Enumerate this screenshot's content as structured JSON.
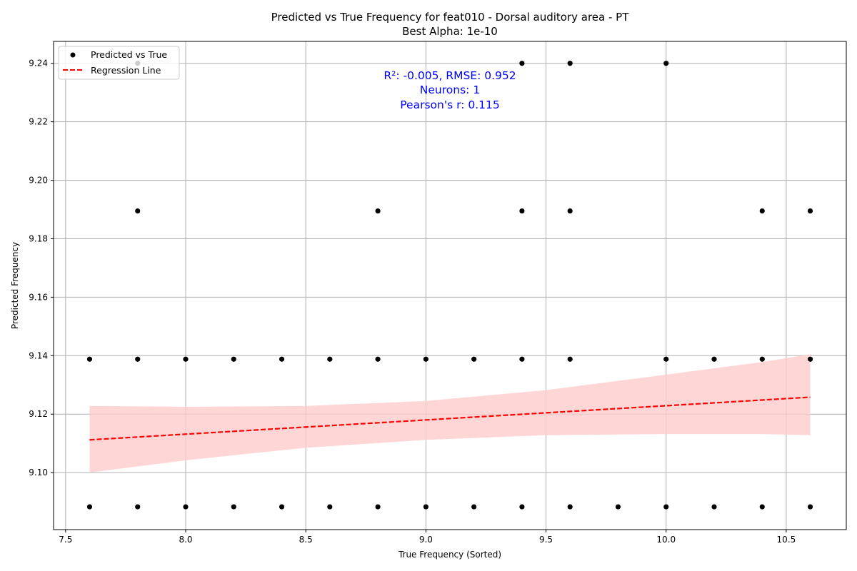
{
  "chart_data": {
    "type": "scatter",
    "title": "Predicted vs True Frequency for feat010 - Dorsal auditory area - PT",
    "subtitle": "Best Alpha: 1e-10",
    "xlabel": "True Frequency (Sorted)",
    "ylabel": "Predicted Frequency",
    "xlim": [
      7.45,
      10.75
    ],
    "ylim": [
      9.0805,
      9.2475
    ],
    "xticks": [
      7.5,
      8.0,
      8.5,
      9.0,
      9.5,
      10.0,
      10.5
    ],
    "xtick_labels": [
      "7.5",
      "8.0",
      "8.5",
      "9.0",
      "9.5",
      "10.0",
      "10.5"
    ],
    "yticks": [
      9.1,
      9.12,
      9.14,
      9.16,
      9.18,
      9.2,
      9.22,
      9.24
    ],
    "ytick_labels": [
      "9.10",
      "9.12",
      "9.14",
      "9.16",
      "9.18",
      "9.20",
      "9.22",
      "9.24"
    ],
    "grid": true,
    "legend_position": "top-left",
    "legend": [
      {
        "label": "Predicted vs True",
        "marker": "dot",
        "color": "#000000"
      },
      {
        "label": "Regression Line",
        "marker": "dashed-line",
        "color": "#ff0000"
      }
    ],
    "annotations": [
      "R²: -0.005, RMSE: 0.952",
      "Neurons: 1",
      "Pearson's r: 0.115"
    ],
    "annotation_color": "#0000ff",
    "series": [
      {
        "name": "Predicted vs True",
        "color": "#000000",
        "points": [
          {
            "x": 7.8,
            "y": 9.24
          },
          {
            "x": 9.4,
            "y": 9.24
          },
          {
            "x": 9.6,
            "y": 9.24
          },
          {
            "x": 10.0,
            "y": 9.24
          },
          {
            "x": 7.8,
            "y": 9.1895
          },
          {
            "x": 8.8,
            "y": 9.1895
          },
          {
            "x": 9.4,
            "y": 9.1895
          },
          {
            "x": 9.6,
            "y": 9.1895
          },
          {
            "x": 10.4,
            "y": 9.1895
          },
          {
            "x": 10.6,
            "y": 9.1895
          },
          {
            "x": 7.6,
            "y": 9.1388
          },
          {
            "x": 7.8,
            "y": 9.1388
          },
          {
            "x": 8.0,
            "y": 9.1388
          },
          {
            "x": 8.2,
            "y": 9.1388
          },
          {
            "x": 8.4,
            "y": 9.1388
          },
          {
            "x": 8.6,
            "y": 9.1388
          },
          {
            "x": 8.8,
            "y": 9.1388
          },
          {
            "x": 9.0,
            "y": 9.1388
          },
          {
            "x": 9.2,
            "y": 9.1388
          },
          {
            "x": 9.4,
            "y": 9.1388
          },
          {
            "x": 9.6,
            "y": 9.1388
          },
          {
            "x": 10.0,
            "y": 9.1388
          },
          {
            "x": 10.2,
            "y": 9.1388
          },
          {
            "x": 10.4,
            "y": 9.1388
          },
          {
            "x": 10.6,
            "y": 9.1388
          },
          {
            "x": 7.6,
            "y": 9.0883
          },
          {
            "x": 7.8,
            "y": 9.0883
          },
          {
            "x": 8.0,
            "y": 9.0883
          },
          {
            "x": 8.2,
            "y": 9.0883
          },
          {
            "x": 8.4,
            "y": 9.0883
          },
          {
            "x": 8.6,
            "y": 9.0883
          },
          {
            "x": 8.8,
            "y": 9.0883
          },
          {
            "x": 9.0,
            "y": 9.0883
          },
          {
            "x": 9.2,
            "y": 9.0883
          },
          {
            "x": 9.4,
            "y": 9.0883
          },
          {
            "x": 9.6,
            "y": 9.0883
          },
          {
            "x": 9.8,
            "y": 9.0883
          },
          {
            "x": 10.0,
            "y": 9.0883
          },
          {
            "x": 10.2,
            "y": 9.0883
          },
          {
            "x": 10.4,
            "y": 9.0883
          },
          {
            "x": 10.6,
            "y": 9.0883
          }
        ]
      },
      {
        "name": "Regression Line",
        "type": "line",
        "style": "dashed",
        "color": "#ff0000",
        "x": [
          7.6,
          10.6
        ],
        "y": [
          9.1112,
          9.1258
        ]
      }
    ],
    "confidence_band": {
      "color": "#ffcccc",
      "x": [
        7.6,
        8.0,
        8.5,
        9.0,
        9.5,
        10.0,
        10.4,
        10.6
      ],
      "lower": [
        9.1,
        9.1042,
        9.1085,
        9.1112,
        9.1128,
        9.1132,
        9.1132,
        9.1128
      ],
      "upper": [
        9.1228,
        9.1225,
        9.1228,
        9.1245,
        9.1282,
        9.1335,
        9.1378,
        9.1405
      ]
    }
  }
}
